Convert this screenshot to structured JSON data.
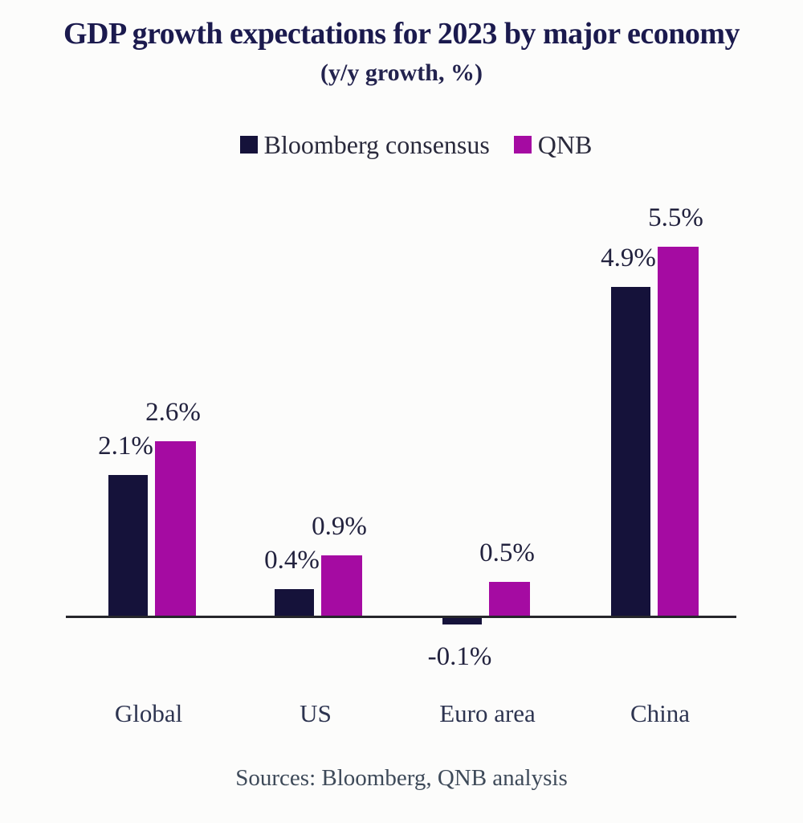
{
  "chart_data": {
    "type": "bar",
    "title": "GDP growth expectations for 2023 by major economy",
    "subtitle": "(y/y growth, %)",
    "categories": [
      "Global",
      "US",
      "Euro area",
      "China"
    ],
    "series": [
      {
        "name": "Bloomberg consensus",
        "color": "#15123A",
        "values": [
          2.1,
          0.4,
          -0.1,
          4.9
        ],
        "labels": [
          "2.1%",
          "0.4%",
          "-0.1%",
          "4.9%"
        ]
      },
      {
        "name": "QNB",
        "color": "#A50BA2",
        "values": [
          2.6,
          0.9,
          0.5,
          5.5
        ],
        "labels": [
          "2.6%",
          "0.9%",
          "0.5%",
          "5.5%"
        ]
      }
    ],
    "source": "Sources: Bloomberg, QNB analysis",
    "legend_position": "top",
    "grid": false,
    "baseline": 0,
    "ylim": [
      -0.5,
      6
    ]
  },
  "colors": {
    "axis": "#26262B",
    "title_text": "#1B1A4E",
    "label_text": "#22223E",
    "background": "#FCFCFB"
  }
}
